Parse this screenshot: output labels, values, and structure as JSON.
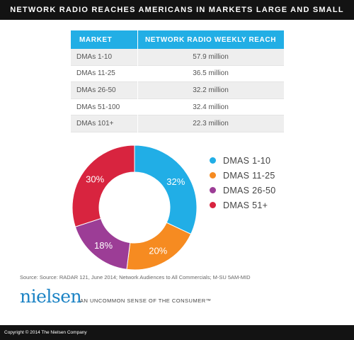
{
  "title": "NETWORK RADIO REACHES AMERICANS IN MARKETS LARGE AND SMALL",
  "table": {
    "headers": [
      "MARKET",
      "NETWORK RADIO WEEKLY REACH"
    ],
    "rows": [
      {
        "market": "DMAs 1-10",
        "reach": "57.9 million"
      },
      {
        "market": "DMAs 11-25",
        "reach": "36.5 million"
      },
      {
        "market": "DMAs 26-50",
        "reach": "32.2 million"
      },
      {
        "market": "DMAs 51-100",
        "reach": "32.4 million"
      },
      {
        "market": "DMAs 101+",
        "reach": "22.3 million"
      }
    ],
    "header_color": "#22aee5"
  },
  "chart_data": {
    "type": "pie",
    "variant": "donut",
    "slices": [
      {
        "label": "DMAS 1-10",
        "value": 32,
        "display": "32%",
        "color": "#21aee6"
      },
      {
        "label": "DMAS 11-25",
        "value": 20,
        "display": "20%",
        "color": "#f68b21"
      },
      {
        "label": "DMAS 26-50",
        "value": 18,
        "display": "18%",
        "color": "#9c3d96"
      },
      {
        "label": "DMAS 51+",
        "value": 30,
        "display": "30%",
        "color": "#d8243f"
      }
    ],
    "legend_position": "right"
  },
  "source": "Source: Source: RADAR 121, June 2014; Network Audiences to All Commercials; M-SU 5AM-MID",
  "brand": {
    "logo_text": "nielsen",
    "tagline": "AN UNCOMMON SENSE OF THE CONSUMER™"
  },
  "footer": "Copyright © 2014 The Nielsen Company"
}
